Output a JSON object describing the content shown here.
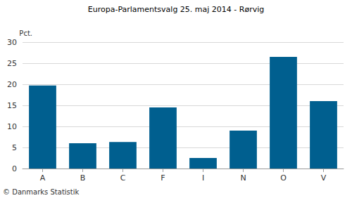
{
  "chart_data": {
    "type": "bar",
    "title": "Europa-Parlamentsvalg 25. maj 2014 - Rørvig",
    "y_label": "Pct.",
    "categories": [
      "A",
      "B",
      "C",
      "F",
      "I",
      "N",
      "O",
      "V"
    ],
    "values": [
      19.7,
      6.0,
      6.3,
      14.5,
      2.5,
      9.0,
      26.5,
      16.0
    ],
    "color": "#005f8f",
    "ylim": [
      0,
      30
    ],
    "yticks": [
      0,
      5,
      10,
      15,
      20,
      25,
      30
    ],
    "grid": true,
    "annotations": [
      "© Danmarks Statistik"
    ]
  }
}
